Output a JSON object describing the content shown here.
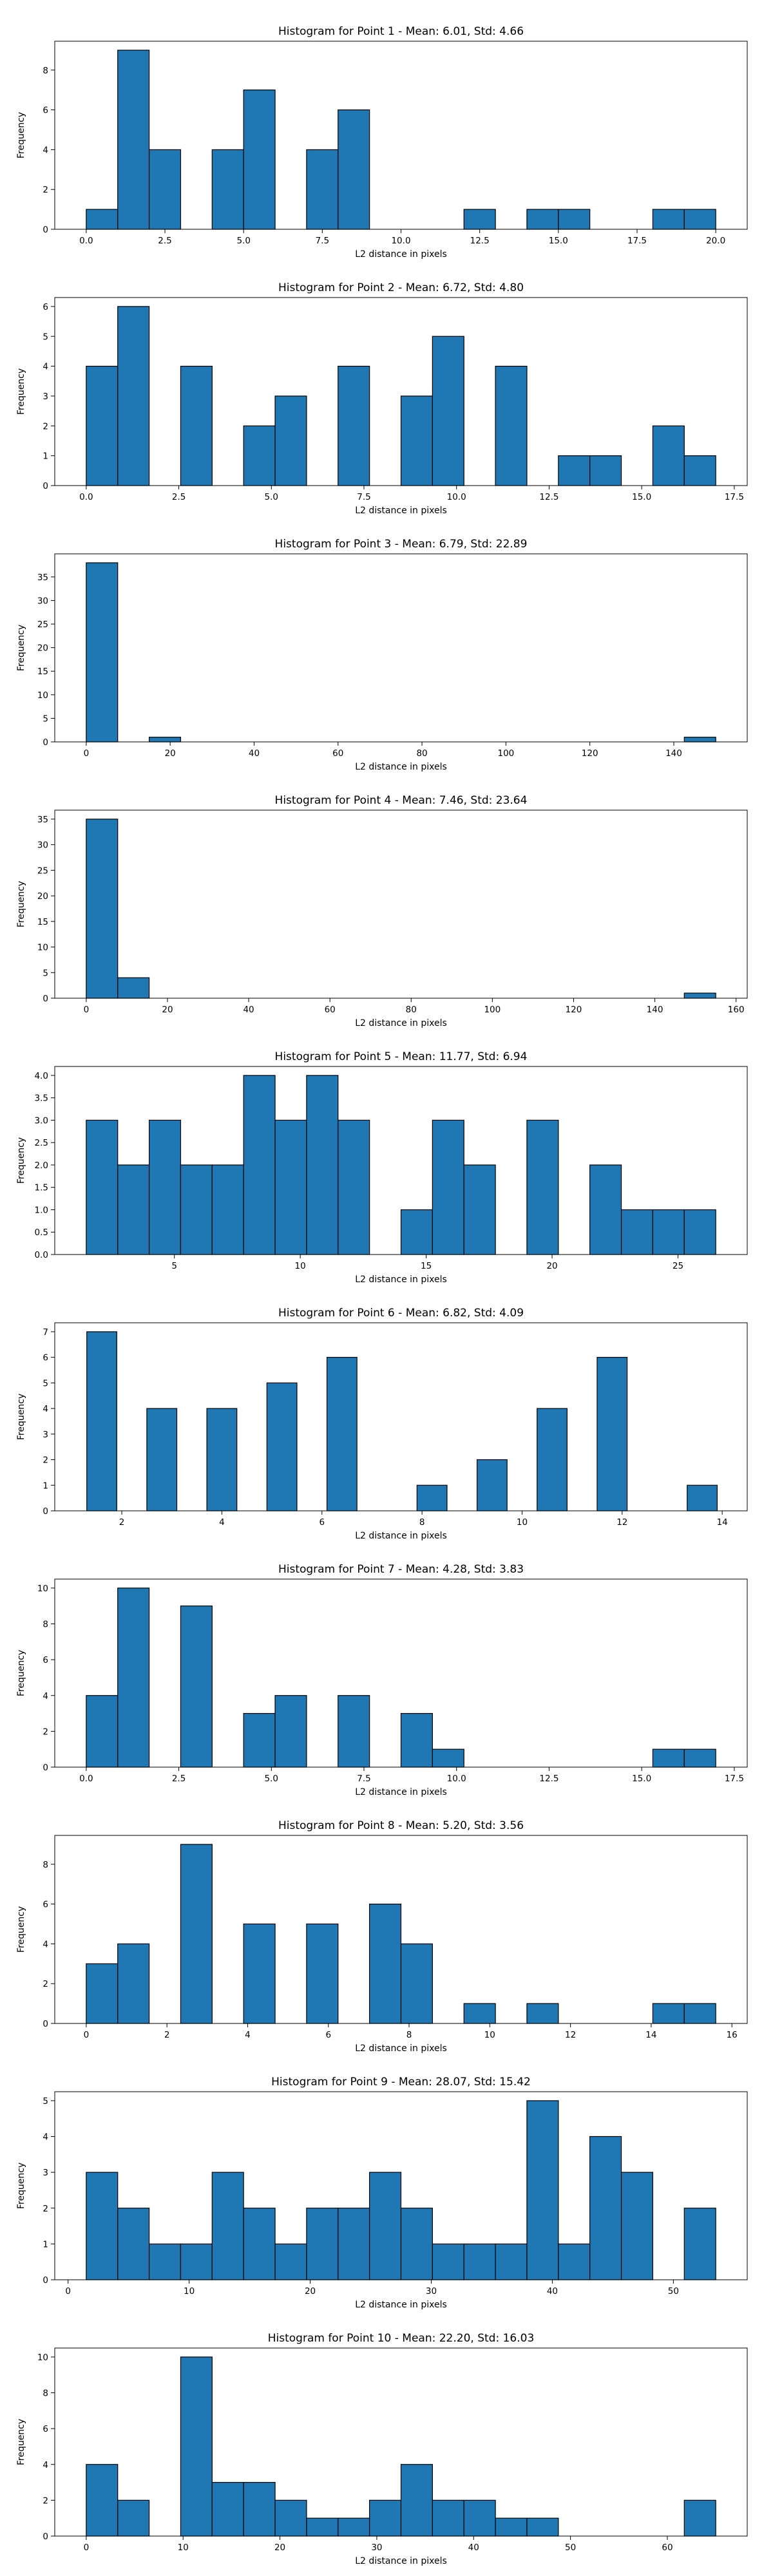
{
  "style": {
    "bar_fill": "#1f77b4",
    "bar_edge": "#000000",
    "axis_color": "#000000",
    "background": "#ffffff"
  },
  "chart_data": [
    {
      "type": "bar",
      "title": "Histogram for Point 1 - Mean: 6.01, Std: 4.66",
      "xlabel": "L2 distance in pixels",
      "ylabel": "Frequency",
      "bin_edges": [
        0,
        1,
        2,
        3,
        4,
        5,
        6,
        7,
        8,
        9,
        10,
        11,
        12,
        13,
        14,
        15,
        16,
        17,
        18,
        19,
        20
      ],
      "values": [
        1,
        9,
        4,
        0,
        4,
        7,
        0,
        4,
        6,
        0,
        0,
        0,
        1,
        0,
        1,
        1,
        0,
        0,
        1,
        1
      ],
      "xlim": [
        -1.0,
        21.0
      ],
      "ylim": [
        0,
        9.45
      ],
      "x_ticks": [
        0,
        2.5,
        5,
        7.5,
        10,
        12.5,
        15,
        17.5,
        20
      ],
      "x_tick_labels": [
        "0.0",
        "2.5",
        "5.0",
        "7.5",
        "10.0",
        "12.5",
        "15.0",
        "17.5",
        "20.0"
      ],
      "y_ticks": [
        0,
        2,
        4,
        6,
        8
      ],
      "y_tick_labels": [
        "0",
        "2",
        "4",
        "6",
        "8"
      ],
      "grid": false,
      "legend": "none"
    },
    {
      "type": "bar",
      "title": "Histogram for Point 2 - Mean: 6.72, Std: 4.80",
      "xlabel": "L2 distance in pixels",
      "ylabel": "Frequency",
      "bin_edges": [
        0,
        0.85,
        1.7,
        2.55,
        3.4,
        4.25,
        5.1,
        5.95,
        6.8,
        7.65,
        8.5,
        9.35,
        10.2,
        11.05,
        11.9,
        12.75,
        13.6,
        14.45,
        15.3,
        16.15,
        17.0
      ],
      "values": [
        4,
        6,
        0,
        4,
        0,
        2,
        3,
        0,
        4,
        0,
        3,
        5,
        0,
        4,
        0,
        1,
        1,
        0,
        2,
        1
      ],
      "xlim": [
        -0.85,
        17.85
      ],
      "ylim": [
        0,
        6.3
      ],
      "x_ticks": [
        0,
        2.5,
        5,
        7.5,
        10,
        12.5,
        15,
        17.5
      ],
      "x_tick_labels": [
        "0.0",
        "2.5",
        "5.0",
        "7.5",
        "10.0",
        "12.5",
        "15.0",
        "17.5"
      ],
      "y_ticks": [
        0,
        1,
        2,
        3,
        4,
        5,
        6
      ],
      "y_tick_labels": [
        "0",
        "1",
        "2",
        "3",
        "4",
        "5",
        "6"
      ],
      "grid": false,
      "legend": "none"
    },
    {
      "type": "bar",
      "title": "Histogram for Point 3 - Mean: 6.79, Std: 22.89",
      "xlabel": "L2 distance in pixels",
      "ylabel": "Frequency",
      "bin_edges": [
        0,
        7.5,
        15,
        22.5,
        30,
        37.5,
        45,
        52.5,
        60,
        67.5,
        75,
        82.5,
        90,
        97.5,
        105,
        112.5,
        120,
        127.5,
        135,
        142.5,
        150
      ],
      "values": [
        38,
        0,
        1,
        0,
        0,
        0,
        0,
        0,
        0,
        0,
        0,
        0,
        0,
        0,
        0,
        0,
        0,
        0,
        0,
        1
      ],
      "xlim": [
        -7.5,
        157.5
      ],
      "ylim": [
        0,
        39.9
      ],
      "x_ticks": [
        0,
        20,
        40,
        60,
        80,
        100,
        120,
        140
      ],
      "x_tick_labels": [
        "0",
        "20",
        "40",
        "60",
        "80",
        "100",
        "120",
        "140"
      ],
      "y_ticks": [
        0,
        5,
        10,
        15,
        20,
        25,
        30,
        35
      ],
      "y_tick_labels": [
        "0",
        "5",
        "10",
        "15",
        "20",
        "25",
        "30",
        "35"
      ],
      "grid": false,
      "legend": "none"
    },
    {
      "type": "bar",
      "title": "Histogram for Point 4 - Mean: 7.46, Std: 23.64",
      "xlabel": "L2 distance in pixels",
      "ylabel": "Frequency",
      "bin_edges": [
        0,
        7.75,
        15.5,
        23.25,
        31,
        38.75,
        46.5,
        54.25,
        62,
        69.75,
        77.5,
        85.25,
        93,
        100.75,
        108.5,
        116.25,
        124,
        131.75,
        139.5,
        147.25,
        155
      ],
      "values": [
        35,
        4,
        0,
        0,
        0,
        0,
        0,
        0,
        0,
        0,
        0,
        0,
        0,
        0,
        0,
        0,
        0,
        0,
        0,
        1
      ],
      "xlim": [
        -7.75,
        162.75
      ],
      "ylim": [
        0,
        36.75
      ],
      "x_ticks": [
        0,
        20,
        40,
        60,
        80,
        100,
        120,
        140,
        160
      ],
      "x_tick_labels": [
        "0",
        "20",
        "40",
        "60",
        "80",
        "100",
        "120",
        "140",
        "160"
      ],
      "y_ticks": [
        0,
        5,
        10,
        15,
        20,
        25,
        30,
        35
      ],
      "y_tick_labels": [
        "0",
        "5",
        "10",
        "15",
        "20",
        "25",
        "30",
        "35"
      ],
      "grid": false,
      "legend": "none"
    },
    {
      "type": "bar",
      "title": "Histogram for Point 5 - Mean: 11.77, Std: 6.94",
      "xlabel": "L2 distance in pixels",
      "ylabel": "Frequency",
      "bin_edges": [
        1.5,
        2.75,
        4.0,
        5.25,
        6.5,
        7.75,
        9.0,
        10.25,
        11.5,
        12.75,
        14.0,
        15.25,
        16.5,
        17.75,
        19.0,
        20.25,
        21.5,
        22.75,
        24.0,
        25.25,
        26.5
      ],
      "values": [
        3,
        2,
        3,
        2,
        2,
        4,
        3,
        4,
        3,
        0,
        1,
        3,
        2,
        0,
        3,
        0,
        2,
        1,
        1,
        1
      ],
      "xlim": [
        0.25,
        27.75
      ],
      "ylim": [
        0,
        4.2
      ],
      "x_ticks": [
        5,
        10,
        15,
        20,
        25
      ],
      "x_tick_labels": [
        "5",
        "10",
        "15",
        "20",
        "25"
      ],
      "y_ticks": [
        0,
        0.5,
        1,
        1.5,
        2,
        2.5,
        3,
        3.5,
        4
      ],
      "y_tick_labels": [
        "0.0",
        "0.5",
        "1.0",
        "1.5",
        "2.0",
        "2.5",
        "3.0",
        "3.5",
        "4.0"
      ],
      "grid": false,
      "legend": "none"
    },
    {
      "type": "bar",
      "title": "Histogram for Point 6 - Mean: 6.82, Std: 4.09",
      "xlabel": "L2 distance in pixels",
      "ylabel": "Frequency",
      "bin_edges": [
        1.3,
        1.9,
        2.5,
        3.1,
        3.7,
        4.3,
        4.9,
        5.5,
        6.1,
        6.7,
        7.3,
        7.9,
        8.5,
        9.1,
        9.7,
        10.3,
        10.9,
        11.5,
        12.1,
        12.7,
        13.3,
        13.9,
        14.5
      ],
      "values": [
        7,
        0,
        4,
        0,
        4,
        0,
        5,
        0,
        6,
        0,
        0,
        1,
        0,
        2,
        0,
        4,
        0,
        6,
        0,
        0,
        1,
        0
      ],
      "xlim": [
        0.66,
        14.5
      ],
      "ylim": [
        0,
        7.35
      ],
      "x_ticks": [
        2,
        4,
        6,
        8,
        10,
        12,
        14
      ],
      "x_tick_labels": [
        "2",
        "4",
        "6",
        "8",
        "10",
        "12",
        "14"
      ],
      "y_ticks": [
        0,
        1,
        2,
        3,
        4,
        5,
        6,
        7
      ],
      "y_tick_labels": [
        "0",
        "1",
        "2",
        "3",
        "4",
        "5",
        "6",
        "7"
      ],
      "grid": false,
      "legend": "none"
    },
    {
      "type": "bar",
      "title": "Histogram for Point 7 - Mean: 4.28, Std: 3.83",
      "xlabel": "L2 distance in pixels",
      "ylabel": "Frequency",
      "bin_edges": [
        0,
        0.85,
        1.7,
        2.55,
        3.4,
        4.25,
        5.1,
        5.95,
        6.8,
        7.65,
        8.5,
        9.35,
        10.2,
        11.05,
        11.9,
        12.75,
        13.6,
        14.45,
        15.3,
        16.15,
        17.0
      ],
      "values": [
        4,
        10,
        0,
        9,
        0,
        3,
        4,
        0,
        4,
        0,
        3,
        1,
        0,
        0,
        0,
        0,
        0,
        0,
        1,
        1
      ],
      "xlim": [
        -0.85,
        17.85
      ],
      "ylim": [
        0,
        10.5
      ],
      "x_ticks": [
        0,
        2.5,
        5,
        7.5,
        10,
        12.5,
        15,
        17.5
      ],
      "x_tick_labels": [
        "0.0",
        "2.5",
        "5.0",
        "7.5",
        "10.0",
        "12.5",
        "15.0",
        "17.5"
      ],
      "y_ticks": [
        0,
        2,
        4,
        6,
        8,
        10
      ],
      "y_tick_labels": [
        "0",
        "2",
        "4",
        "6",
        "8",
        "10"
      ],
      "grid": false,
      "legend": "none"
    },
    {
      "type": "bar",
      "title": "Histogram for Point 8 - Mean: 5.20, Std: 3.56",
      "xlabel": "L2 distance in pixels",
      "ylabel": "Frequency",
      "bin_edges": [
        0,
        0.78,
        1.56,
        2.34,
        3.12,
        3.9,
        4.68,
        5.46,
        6.24,
        7.02,
        7.8,
        8.58,
        9.36,
        10.14,
        10.92,
        11.7,
        12.48,
        13.26,
        14.04,
        14.82,
        15.6
      ],
      "values": [
        3,
        4,
        0,
        9,
        0,
        5,
        0,
        5,
        0,
        6,
        4,
        0,
        1,
        0,
        1,
        0,
        0,
        0,
        1,
        1
      ],
      "xlim": [
        -0.78,
        16.38
      ],
      "ylim": [
        0,
        9.45
      ],
      "x_ticks": [
        0,
        2,
        4,
        6,
        8,
        10,
        12,
        14,
        16
      ],
      "x_tick_labels": [
        "0",
        "2",
        "4",
        "6",
        "8",
        "10",
        "12",
        "14",
        "16"
      ],
      "y_ticks": [
        0,
        2,
        4,
        6,
        8
      ],
      "y_tick_labels": [
        "0",
        "2",
        "4",
        "6",
        "8"
      ],
      "grid": false,
      "legend": "none"
    },
    {
      "type": "bar",
      "title": "Histogram for Point 9 - Mean: 28.07, Std: 15.42",
      "xlabel": "L2 distance in pixels",
      "ylabel": "Frequency",
      "bin_edges": [
        1.5,
        4.1,
        6.7,
        9.3,
        11.9,
        14.5,
        17.1,
        19.7,
        22.3,
        24.9,
        27.5,
        30.1,
        32.7,
        35.3,
        37.9,
        40.5,
        43.1,
        45.7,
        48.3,
        50.9,
        53.5
      ],
      "values": [
        3,
        2,
        1,
        1,
        3,
        2,
        1,
        2,
        2,
        3,
        2,
        1,
        1,
        1,
        5,
        1,
        4,
        3,
        0,
        2
      ],
      "xlim": [
        -1.1,
        56.1
      ],
      "ylim": [
        0,
        5.25
      ],
      "x_ticks": [
        0,
        10,
        20,
        30,
        40,
        50
      ],
      "x_tick_labels": [
        "0",
        "10",
        "20",
        "30",
        "40",
        "50"
      ],
      "y_ticks": [
        0,
        1,
        2,
        3,
        4,
        5
      ],
      "y_tick_labels": [
        "0",
        "1",
        "2",
        "3",
        "4",
        "5"
      ],
      "grid": false,
      "legend": "none"
    },
    {
      "type": "bar",
      "title": "Histogram for Point 10 - Mean: 22.20, Std: 16.03",
      "xlabel": "L2 distance in pixels",
      "ylabel": "Frequency",
      "bin_edges": [
        0,
        3.25,
        6.5,
        9.75,
        13,
        16.25,
        19.5,
        22.75,
        26,
        29.25,
        32.5,
        35.75,
        39,
        42.25,
        45.5,
        48.75,
        52,
        55.25,
        58.5,
        61.75,
        65
      ],
      "values": [
        4,
        2,
        0,
        10,
        3,
        3,
        2,
        1,
        1,
        2,
        4,
        2,
        2,
        1,
        1,
        0,
        0,
        0,
        0,
        2
      ],
      "xlim": [
        -3.25,
        68.25
      ],
      "ylim": [
        0,
        10.5
      ],
      "x_ticks": [
        0,
        10,
        20,
        30,
        40,
        50,
        60
      ],
      "x_tick_labels": [
        "0",
        "10",
        "20",
        "30",
        "40",
        "50",
        "60"
      ],
      "y_ticks": [
        0,
        2,
        4,
        6,
        8,
        10
      ],
      "y_tick_labels": [
        "0",
        "2",
        "4",
        "6",
        "8",
        "10"
      ],
      "grid": false,
      "legend": "none"
    }
  ]
}
